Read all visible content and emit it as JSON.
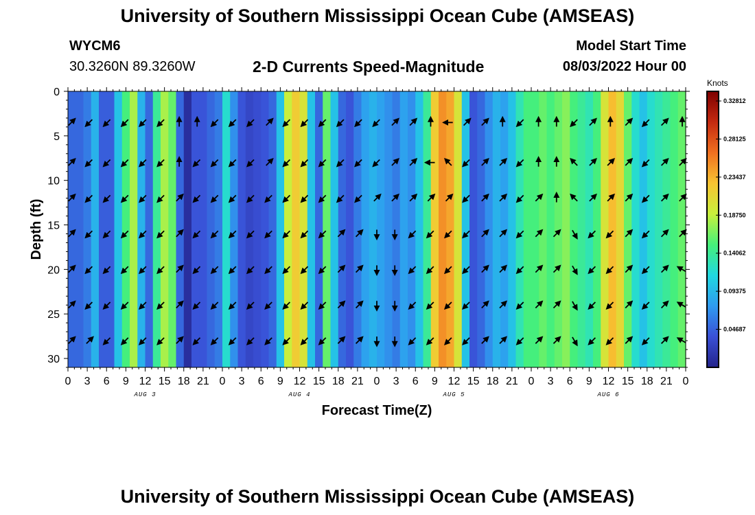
{
  "page": {
    "title": "University of Southern Mississippi Ocean Cube (AMSEAS)",
    "title_repeat": "University of Southern Mississippi Ocean Cube (AMSEAS)",
    "station_id": "WYCM6",
    "coordinates": "30.3260N  89.3260W",
    "plot_title": "2-D Currents Speed-Magnitude",
    "model_start_label": "Model Start Time",
    "model_start_value": "08/03/2022 Hour 00"
  },
  "chart_data": {
    "type": "heatmap",
    "title": "2-D Currents Speed-Magnitude",
    "xlabel": "Forecast Time(Z)",
    "ylabel": "Depth (ft)",
    "x_ticks": [
      "0",
      "3",
      "6",
      "9",
      "12",
      "15",
      "18",
      "21",
      "0",
      "3",
      "6",
      "9",
      "12",
      "15",
      "18",
      "21",
      "0",
      "3",
      "6",
      "9",
      "12",
      "15",
      "18",
      "21",
      "0",
      "3",
      "6",
      "9",
      "12",
      "15",
      "18",
      "21",
      "0"
    ],
    "day_labels": [
      "AUG 3",
      "AUG 4",
      "AUG 5",
      "AUG 6"
    ],
    "x_range_hours": [
      0,
      96
    ],
    "y_range_ft": [
      0,
      31
    ],
    "y_ticks": [
      0,
      5,
      10,
      15,
      20,
      25,
      30
    ],
    "colorbar": {
      "title": "Knots",
      "range": [
        0,
        0.34
      ],
      "ticks": [
        0.04687,
        0.09375,
        0.14062,
        0.1875,
        0.23437,
        0.28125,
        0.32812
      ],
      "tick_labels": [
        "0.04687",
        "0.09375",
        "0.14062",
        "0.18750",
        "0.23437",
        "0.28125",
        "0.32812"
      ],
      "colors": [
        "#23238a",
        "#3a50d6",
        "#2f9bf0",
        "#20d8e0",
        "#46f07a",
        "#c8f03c",
        "#f8c432",
        "#f07020",
        "#c42a10",
        "#7e0000"
      ]
    },
    "arrow_depths_ft": [
      3.5,
      8,
      12,
      16,
      20,
      24,
      28
    ],
    "column_speeds_knots": [
      0.05,
      0.05,
      0.06,
      0.09,
      0.045,
      0.045,
      0.1,
      0.15,
      0.18,
      0.09,
      0.05,
      0.14,
      0.18,
      0.16,
      0.05,
      0.01,
      0.04,
      0.04,
      0.05,
      0.06,
      0.12,
      0.07,
      0.04,
      0.03,
      0.035,
      0.04,
      0.05,
      0.1,
      0.19,
      0.22,
      0.2,
      0.1,
      0.05,
      0.16,
      0.1,
      0.05,
      0.04,
      0.06,
      0.08,
      0.09,
      0.08,
      0.07,
      0.06,
      0.08,
      0.07,
      0.1,
      0.14,
      0.22,
      0.25,
      0.24,
      0.2,
      0.1,
      0.04,
      0.05,
      0.07,
      0.09,
      0.08,
      0.1,
      0.13,
      0.15,
      0.15,
      0.16,
      0.15,
      0.16,
      0.17,
      0.15,
      0.14,
      0.13,
      0.15,
      0.2,
      0.23,
      0.21,
      0.16,
      0.12,
      0.1,
      0.12,
      0.13,
      0.14,
      0.15,
      0.16
    ],
    "arrow_directions_deg": [
      [
        45,
        225,
        225,
        225,
        225,
        225,
        0,
        0,
        225,
        225,
        225,
        45,
        225,
        225,
        225,
        225,
        225,
        225,
        45,
        45,
        0,
        270,
        45,
        45,
        0,
        225,
        0,
        0,
        225,
        45,
        0,
        45,
        225,
        45,
        0
      ],
      [
        45,
        225,
        225,
        225,
        225,
        225,
        0,
        225,
        225,
        225,
        225,
        45,
        225,
        225,
        225,
        225,
        225,
        225,
        45,
        45,
        270,
        315,
        225,
        45,
        45,
        225,
        0,
        0,
        315,
        45,
        45,
        45,
        225,
        45,
        45
      ],
      [
        45,
        225,
        225,
        225,
        225,
        225,
        45,
        225,
        225,
        225,
        225,
        225,
        225,
        225,
        225,
        225,
        225,
        45,
        45,
        45,
        45,
        45,
        225,
        45,
        45,
        225,
        45,
        0,
        315,
        45,
        45,
        45,
        225,
        45,
        45
      ],
      [
        45,
        225,
        225,
        225,
        225,
        225,
        45,
        225,
        225,
        225,
        225,
        225,
        225,
        225,
        225,
        45,
        45,
        180,
        180,
        225,
        225,
        225,
        225,
        45,
        45,
        225,
        45,
        45,
        150,
        225,
        225,
        45,
        225,
        45,
        45
      ],
      [
        45,
        225,
        225,
        225,
        225,
        225,
        45,
        225,
        225,
        225,
        225,
        225,
        225,
        225,
        225,
        45,
        45,
        180,
        180,
        225,
        225,
        225,
        225,
        45,
        45,
        225,
        45,
        45,
        150,
        225,
        225,
        45,
        225,
        45,
        300
      ],
      [
        45,
        225,
        225,
        225,
        225,
        225,
        45,
        225,
        225,
        225,
        225,
        225,
        225,
        225,
        225,
        45,
        45,
        180,
        180,
        225,
        225,
        225,
        225,
        45,
        45,
        225,
        45,
        45,
        150,
        225,
        225,
        45,
        225,
        45,
        300
      ],
      [
        45,
        45,
        225,
        225,
        225,
        225,
        45,
        225,
        225,
        225,
        225,
        225,
        225,
        225,
        225,
        45,
        45,
        180,
        180,
        225,
        225,
        225,
        225,
        45,
        45,
        225,
        45,
        45,
        150,
        225,
        225,
        45,
        225,
        45,
        300
      ]
    ]
  }
}
